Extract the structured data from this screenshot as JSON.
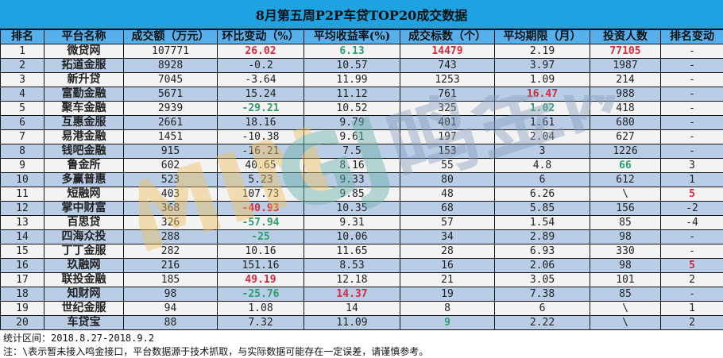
{
  "title": "8月第五周P2P车贷TOP20成交数据",
  "columns": [
    "排名",
    "平台名称",
    "成交额（万元）",
    "环比变动（%）",
    "平均收益率(%)",
    "成交标数（个）",
    "平均期限（月）",
    "投资人数",
    "排名变动"
  ],
  "rows": [
    [
      [
        "1"
      ],
      [
        "微贷网"
      ],
      [
        "107771"
      ],
      [
        "26.02",
        "red"
      ],
      [
        "6.13",
        "green"
      ],
      [
        "14479",
        "red"
      ],
      [
        "2.19"
      ],
      [
        "77105",
        "red"
      ],
      [
        "-"
      ]
    ],
    [
      [
        "2"
      ],
      [
        "拓道金服"
      ],
      [
        "8928"
      ],
      [
        "-0.2"
      ],
      [
        "10.57"
      ],
      [
        "743"
      ],
      [
        "3.97"
      ],
      [
        "1987"
      ],
      [
        "-"
      ]
    ],
    [
      [
        "3"
      ],
      [
        "新升贷"
      ],
      [
        "7045"
      ],
      [
        "-3.64"
      ],
      [
        "11.99"
      ],
      [
        "1253"
      ],
      [
        "1.09"
      ],
      [
        "214"
      ],
      [
        "-"
      ]
    ],
    [
      [
        "4"
      ],
      [
        "富勤金融"
      ],
      [
        "5671"
      ],
      [
        "15.24"
      ],
      [
        "11.12"
      ],
      [
        "761"
      ],
      [
        "16.47",
        "red"
      ],
      [
        "988"
      ],
      [
        "-"
      ]
    ],
    [
      [
        "5"
      ],
      [
        "聚车金融"
      ],
      [
        "2939"
      ],
      [
        "-29.21",
        "green"
      ],
      [
        "10.52"
      ],
      [
        "325"
      ],
      [
        "1.02",
        "green"
      ],
      [
        "418"
      ],
      [
        "-"
      ]
    ],
    [
      [
        "6"
      ],
      [
        "互惠金服"
      ],
      [
        "2661"
      ],
      [
        "18.16"
      ],
      [
        "9.79"
      ],
      [
        "401"
      ],
      [
        "1.61"
      ],
      [
        "680"
      ],
      [
        "-"
      ]
    ],
    [
      [
        "7"
      ],
      [
        "易港金融"
      ],
      [
        "1451"
      ],
      [
        "-10.38"
      ],
      [
        "9.61"
      ],
      [
        "197"
      ],
      [
        "2.04"
      ],
      [
        "627"
      ],
      [
        "-"
      ]
    ],
    [
      [
        "8"
      ],
      [
        "钱吧金融"
      ],
      [
        "915"
      ],
      [
        "-16.21"
      ],
      [
        "7.5"
      ],
      [
        "153"
      ],
      [
        "3"
      ],
      [
        "1226"
      ],
      [
        "-"
      ]
    ],
    [
      [
        "9"
      ],
      [
        "鲁金所"
      ],
      [
        "602"
      ],
      [
        "40.65"
      ],
      [
        "8.16"
      ],
      [
        "55"
      ],
      [
        "4.8"
      ],
      [
        "66",
        "green"
      ],
      [
        "3"
      ]
    ],
    [
      [
        "10"
      ],
      [
        "多赢普惠"
      ],
      [
        "523"
      ],
      [
        "5.23"
      ],
      [
        "9.33"
      ],
      [
        "80"
      ],
      [
        "6"
      ],
      [
        "612"
      ],
      [
        "1"
      ]
    ],
    [
      [
        "11"
      ],
      [
        "短融网"
      ],
      [
        "403"
      ],
      [
        "107.73"
      ],
      [
        "9.85"
      ],
      [
        "48"
      ],
      [
        "6.26"
      ],
      [
        "\\"
      ],
      [
        "5",
        "red"
      ]
    ],
    [
      [
        "12"
      ],
      [
        "掌中财富"
      ],
      [
        "368"
      ],
      [
        "-40.93",
        "red"
      ],
      [
        "10.35"
      ],
      [
        "68"
      ],
      [
        "5.85"
      ],
      [
        "156"
      ],
      [
        "-2"
      ]
    ],
    [
      [
        "13"
      ],
      [
        "百思贷"
      ],
      [
        "326"
      ],
      [
        "-57.94",
        "green"
      ],
      [
        "9.31"
      ],
      [
        "57"
      ],
      [
        "1.54"
      ],
      [
        "85"
      ],
      [
        "-4"
      ]
    ],
    [
      [
        "14"
      ],
      [
        "四海众投"
      ],
      [
        "288"
      ],
      [
        "-25",
        "green"
      ],
      [
        "10.06"
      ],
      [
        "34"
      ],
      [
        "2.89"
      ],
      [
        "98"
      ],
      [
        "-"
      ]
    ],
    [
      [
        "15"
      ],
      [
        "丁丁金服"
      ],
      [
        "282"
      ],
      [
        "10.16"
      ],
      [
        "11.65"
      ],
      [
        "28"
      ],
      [
        "6.93"
      ],
      [
        "330"
      ],
      [
        "-"
      ]
    ],
    [
      [
        "16"
      ],
      [
        "玖融网"
      ],
      [
        "216"
      ],
      [
        "151.16"
      ],
      [
        "8.53"
      ],
      [
        "16"
      ],
      [
        "2.06"
      ],
      [
        "98"
      ],
      [
        "5",
        "red"
      ]
    ],
    [
      [
        "17"
      ],
      [
        "联投金融"
      ],
      [
        "185"
      ],
      [
        "49.19",
        "red"
      ],
      [
        "12.18"
      ],
      [
        "21"
      ],
      [
        "3.05"
      ],
      [
        "101"
      ],
      [
        "2"
      ]
    ],
    [
      [
        "18"
      ],
      [
        "知财网"
      ],
      [
        "98"
      ],
      [
        "-25.76",
        "green"
      ],
      [
        "14.37",
        "red"
      ],
      [
        "19"
      ],
      [
        "7.38"
      ],
      [
        "85"
      ],
      [
        "-"
      ]
    ],
    [
      [
        "19"
      ],
      [
        "世纪金服"
      ],
      [
        "94"
      ],
      [
        "1.08"
      ],
      [
        "14"
      ],
      [
        "8"
      ],
      [
        "6"
      ],
      [
        "\\"
      ],
      [
        "1"
      ]
    ],
    [
      [
        "20"
      ],
      [
        "车贷宝"
      ],
      [
        "88"
      ],
      [
        "7.32"
      ],
      [
        "11.09"
      ],
      [
        "9",
        "green"
      ],
      [
        "2.22"
      ],
      [
        "\\"
      ],
      [
        "2"
      ]
    ]
  ],
  "footer": {
    "period": "统计区间：2018.8.27-2018.9.2",
    "note": "注：\\表示暂未接入鸣金接口，平台数据源于技术抓取，与实际数据可能存在一定误差，请谨慎参考。"
  },
  "watermark": "MINGJIN 鸣金网",
  "colors": {
    "title_bg": "#1ea2e2",
    "header_bg": "#58b0ea",
    "row_alt": "#b9cde6",
    "red": "#d32a3c",
    "green": "#2e9d6b"
  }
}
